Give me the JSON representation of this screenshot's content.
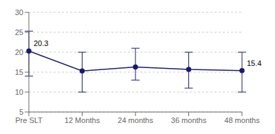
{
  "chart_data": {
    "type": "line",
    "categories": [
      "Pre SLT",
      "12 Months",
      "24 months",
      "36 months",
      "48 months"
    ],
    "values": [
      20.3,
      15.3,
      16.3,
      15.7,
      15.4
    ],
    "error_lower": [
      6.3,
      5.3,
      3.3,
      4.7,
      5.4
    ],
    "error_upper": [
      5.0,
      4.7,
      4.7,
      4.3,
      4.6
    ],
    "annotations": [
      {
        "text": "20.3",
        "x": "Pre SLT"
      },
      {
        "text": "15.4",
        "x": "48 months"
      }
    ],
    "color": "#191970",
    "marker": "circle",
    "ylim": [
      5,
      30
    ],
    "yticks": [
      5,
      10,
      15,
      20,
      25,
      30
    ],
    "grid": true
  }
}
